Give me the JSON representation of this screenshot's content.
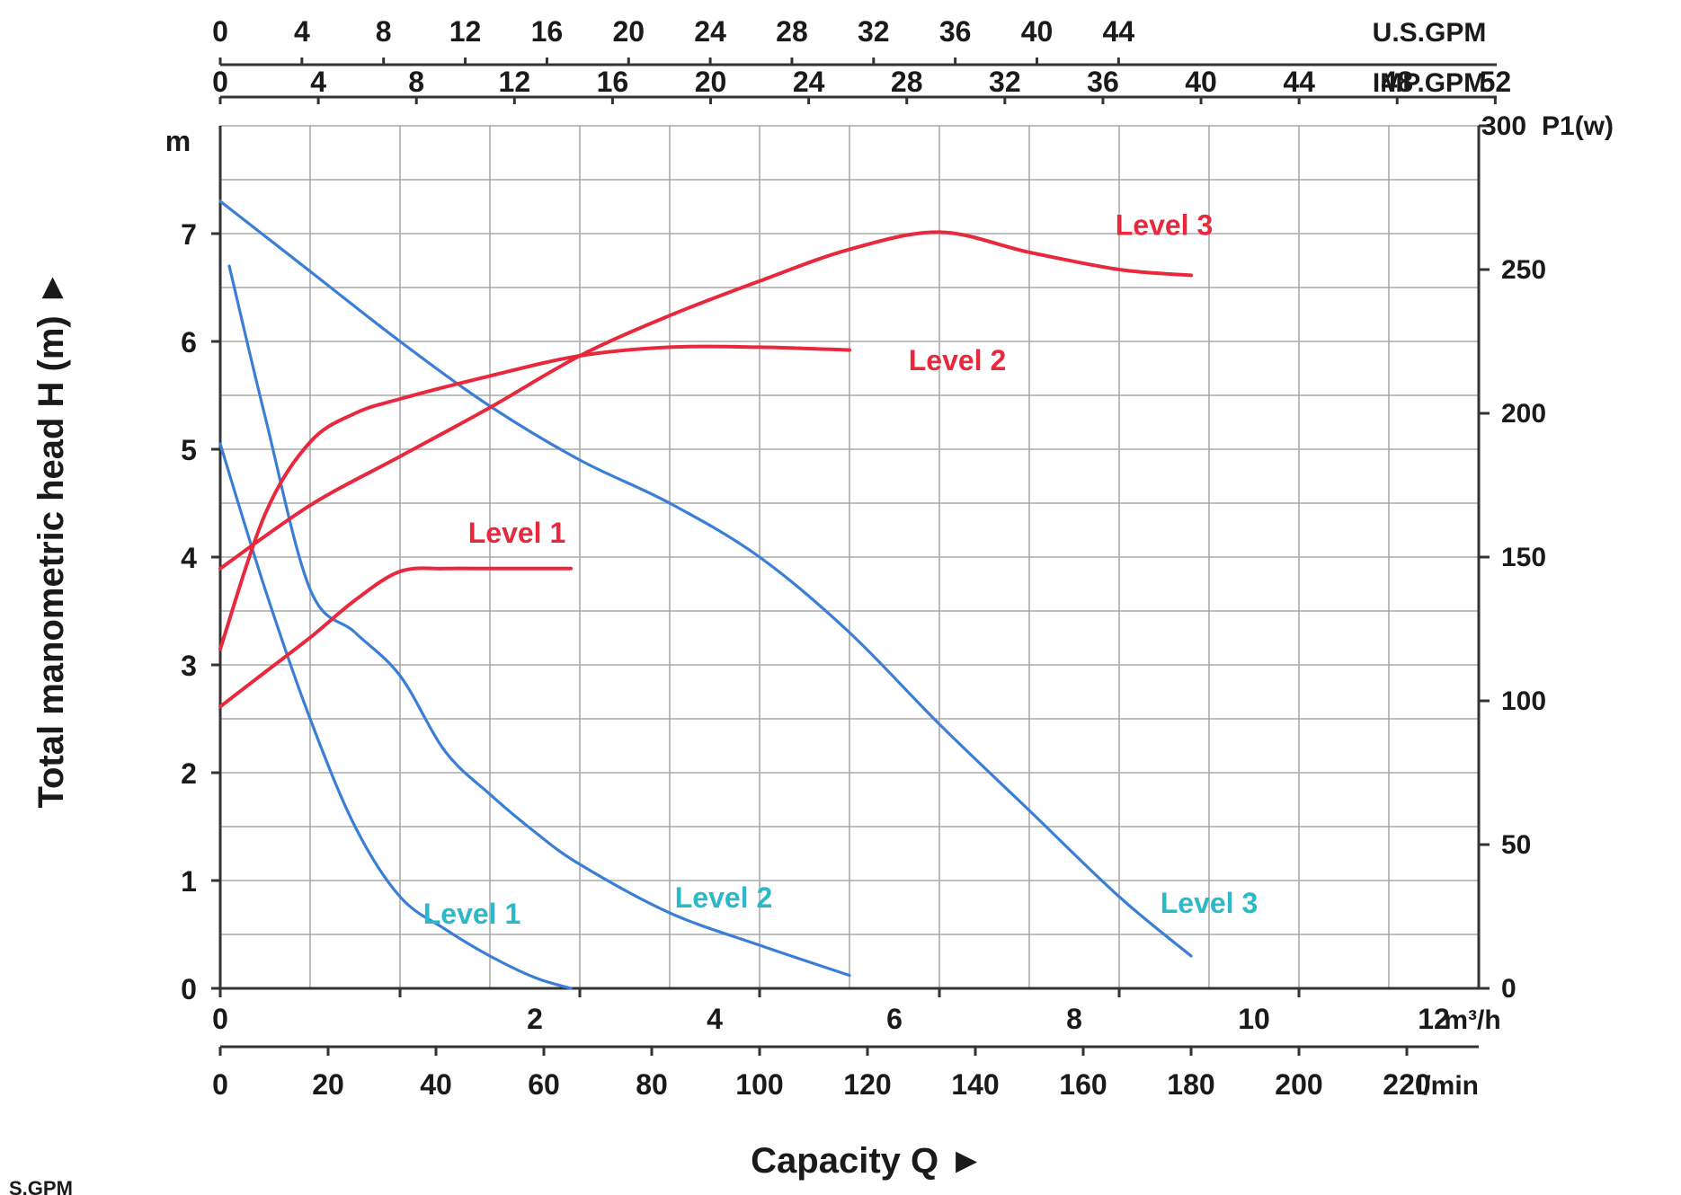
{
  "chart_data": {
    "type": "line",
    "title": "",
    "xlabel": "Capacity Q ►",
    "ylabel": "Total manometric head H (m) ►",
    "x_unit": "m³/h",
    "xlim": [
      0,
      14
    ],
    "ylim": [
      0,
      8
    ],
    "y_unit": "m",
    "y2_unit": "P1(w)",
    "y2lim": [
      0,
      300
    ],
    "grid": true,
    "colors": {
      "head": "#3a7fd5",
      "power": "#e8283c",
      "label_head": "#2bb8c9",
      "grid": "#aaaaaa",
      "axis": "#333333"
    },
    "axes": {
      "x_m3h_ticks": [
        "0",
        "2",
        "4",
        "6",
        "8",
        "10",
        "12"
      ],
      "x_m3h_unit": "m³/h",
      "x_lmin_ticks": [
        "0",
        "20",
        "40",
        "60",
        "80",
        "100",
        "120",
        "140",
        "160",
        "180",
        "200",
        "220"
      ],
      "x_lmin_unit": "l/min",
      "x_usgpm_ticks": [
        "0",
        "4",
        "8",
        "12",
        "16",
        "20",
        "24",
        "28",
        "32",
        "36",
        "40",
        "44"
      ],
      "x_usgpm_unit": "U.S.GPM",
      "x_impgpm_ticks": [
        "0",
        "4",
        "8",
        "12",
        "16",
        "20",
        "24",
        "28",
        "32",
        "36",
        "40",
        "44",
        "48",
        "52"
      ],
      "x_impgpm_unit": "IMP.GPM",
      "y_ticks": [
        "0",
        "1",
        "2",
        "3",
        "4",
        "5",
        "6",
        "7"
      ],
      "y_unit": "m",
      "y2_ticks": [
        "0",
        "50",
        "100",
        "150",
        "200",
        "250",
        "300"
      ],
      "y2_unit": "P1(w)"
    },
    "series": [
      {
        "name": "Level 1",
        "kind": "head",
        "axis": "left",
        "x": [
          0,
          0.5,
          1,
          1.5,
          2,
          2.5,
          3,
          3.5,
          3.9
        ],
        "y": [
          5.05,
          3.7,
          2.5,
          1.5,
          0.85,
          0.55,
          0.3,
          0.1,
          0.0
        ]
      },
      {
        "name": "Level 2",
        "kind": "head",
        "axis": "left",
        "x": [
          0.1,
          0.5,
          1,
          1.5,
          2,
          2.5,
          3,
          3.5,
          4,
          5,
          6,
          7
        ],
        "y": [
          6.7,
          5.3,
          3.7,
          3.3,
          2.9,
          2.2,
          1.8,
          1.45,
          1.15,
          0.7,
          0.4,
          0.12
        ]
      },
      {
        "name": "Level 3",
        "kind": "head",
        "axis": "left",
        "x": [
          0,
          1,
          2,
          3,
          4,
          5,
          6,
          7,
          8,
          9,
          10,
          10.8
        ],
        "y": [
          7.3,
          6.65,
          6.0,
          5.4,
          4.9,
          4.5,
          4.0,
          3.3,
          2.45,
          1.65,
          0.85,
          0.3
        ]
      },
      {
        "name": "Level 1",
        "kind": "power",
        "axis": "right",
        "x": [
          0,
          0.5,
          1,
          1.5,
          2,
          2.5,
          3,
          3.5,
          3.9
        ],
        "y": [
          98,
          110,
          122,
          135,
          145,
          146,
          146,
          146,
          146
        ]
      },
      {
        "name": "Level 2",
        "kind": "power",
        "axis": "right",
        "x": [
          0,
          0.5,
          1,
          1.5,
          2,
          3,
          4,
          5,
          6,
          7
        ],
        "y": [
          118,
          165,
          190,
          200,
          205,
          213,
          220,
          223,
          223,
          222
        ]
      },
      {
        "name": "Level 3",
        "kind": "power",
        "axis": "right",
        "x": [
          0,
          1,
          2,
          3,
          4,
          5,
          6,
          7,
          8,
          9,
          10,
          10.8
        ],
        "y": [
          146,
          168,
          185,
          202,
          220,
          234,
          246,
          257,
          263,
          256,
          250,
          248
        ]
      }
    ],
    "annotations": [
      {
        "text": "Level 1",
        "kind": "power",
        "x": 3.3,
        "y": 155
      },
      {
        "text": "Level 2",
        "kind": "power",
        "x": 8.2,
        "y": 215
      },
      {
        "text": "Level 3",
        "kind": "power",
        "x": 10.5,
        "y": 262
      },
      {
        "text": "Level 1",
        "kind": "head",
        "x": 2.8,
        "y": 0.6
      },
      {
        "text": "Level 2",
        "kind": "head",
        "x": 5.6,
        "y": 0.75
      },
      {
        "text": "Level 3",
        "kind": "head",
        "x": 11.0,
        "y": 0.7
      }
    ],
    "footnote": "S.GPM"
  }
}
